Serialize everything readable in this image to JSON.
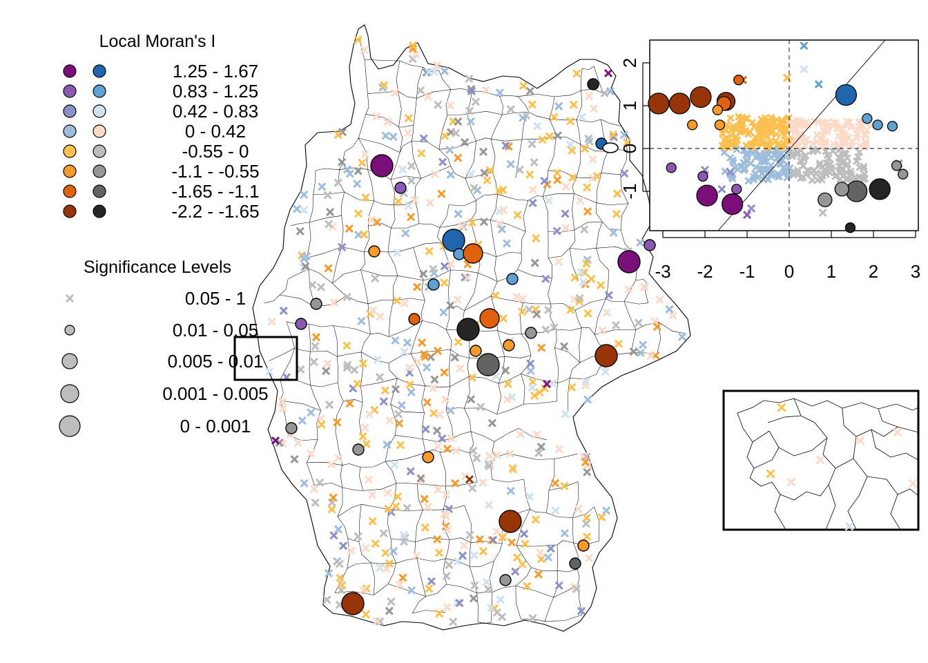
{
  "legend_moran": {
    "title": "Local Moran's I",
    "rows": [
      {
        "label": "1.25 - 1.67",
        "left": "#7a0f7a",
        "right": "#2166ac"
      },
      {
        "label": "0.83 - 1.25",
        "left": "#8a59b0",
        "right": "#5fa2d2"
      },
      {
        "label": "0.42 - 0.83",
        "left": "#8c8fc8",
        "right": "#cfe1f1"
      },
      {
        "label": "0 - 0.42",
        "left": "#9ebcdb",
        "right": "#fddac8"
      },
      {
        "label": "-0.55 - 0",
        "left": "#fdbf4e",
        "right": "#bdbdbd"
      },
      {
        "label": "-1.1 - -0.55",
        "left": "#f59a2b",
        "right": "#969696"
      },
      {
        "label": "-1.65 - -1.1",
        "left": "#e0620f",
        "right": "#636363"
      },
      {
        "label": "-2.2 - -1.65",
        "left": "#983508",
        "right": "#252525"
      }
    ]
  },
  "legend_significance": {
    "title": "Significance Levels",
    "items": [
      {
        "label": "0.05 - 1",
        "size": 0
      },
      {
        "label": "0.01 - 0.05",
        "size": 1
      },
      {
        "label": "0.005 - 0.01",
        "size": 2
      },
      {
        "label": "0.001 - 0.005",
        "size": 3
      },
      {
        "label": "0 - 0.001",
        "size": 4
      }
    ]
  },
  "scatter_inset": {
    "x_ticks": [
      "-3",
      "-2",
      "-1",
      "0",
      "1",
      "2",
      "3"
    ],
    "y_ticks": [
      "-1",
      "0",
      "1",
      "2"
    ],
    "points": [
      {
        "x": -3.1,
        "y": 1.05,
        "size": 4,
        "c": "#983508"
      },
      {
        "x": -2.6,
        "y": 1.05,
        "size": 4,
        "c": "#983508"
      },
      {
        "x": -2.1,
        "y": 1.2,
        "size": 4,
        "c": "#983508"
      },
      {
        "x": -1.5,
        "y": 1.1,
        "size": 3,
        "c": "#983508"
      },
      {
        "x": -1.55,
        "y": 1.05,
        "size": 2,
        "c": "#e0620f"
      },
      {
        "x": -1.2,
        "y": 1.6,
        "size": 1,
        "c": "#e0620f"
      },
      {
        "x": -1.7,
        "y": 0.9,
        "size": 1,
        "c": "#f59a2b"
      },
      {
        "x": -2.3,
        "y": 0.55,
        "size": 1,
        "c": "#f59a2b"
      },
      {
        "x": -1.65,
        "y": 0.55,
        "size": 1,
        "c": "#f59a2b"
      },
      {
        "x": 1.35,
        "y": 1.25,
        "size": 4,
        "c": "#2166ac"
      },
      {
        "x": 1.85,
        "y": 0.7,
        "size": 1,
        "c": "#5fa2d2"
      },
      {
        "x": 2.1,
        "y": 0.55,
        "size": 1,
        "c": "#5fa2d2"
      },
      {
        "x": 2.45,
        "y": 0.52,
        "size": 1,
        "c": "#5fa2d2"
      },
      {
        "x": -2.8,
        "y": -0.45,
        "size": 1,
        "c": "#8a59b0"
      },
      {
        "x": -2.05,
        "y": -0.65,
        "size": 1,
        "c": "#8a59b0"
      },
      {
        "x": -1.25,
        "y": -0.95,
        "size": 1,
        "c": "#8a59b0"
      },
      {
        "x": -1.95,
        "y": -1.1,
        "size": 4,
        "c": "#7a0f7a"
      },
      {
        "x": -1.35,
        "y": -1.3,
        "size": 4,
        "c": "#7a0f7a"
      },
      {
        "x": 1.6,
        "y": -1.0,
        "size": 4,
        "c": "#636363"
      },
      {
        "x": 2.15,
        "y": -0.95,
        "size": 4,
        "c": "#252525"
      },
      {
        "x": 1.25,
        "y": -0.95,
        "size": 2,
        "c": "#969696"
      },
      {
        "x": 0.85,
        "y": -1.2,
        "size": 2,
        "c": "#969696"
      },
      {
        "x": 2.55,
        "y": -0.4,
        "size": 1,
        "c": "#969696"
      },
      {
        "x": 2.7,
        "y": -0.6,
        "size": 1,
        "c": "#969696"
      },
      {
        "x": 1.45,
        "y": -1.85,
        "size": 1,
        "c": "#252525"
      }
    ]
  },
  "map_symbols": {
    "circles": [
      {
        "x": 553,
        "y": 240,
        "size": 4,
        "c": "#7a0f7a"
      },
      {
        "x": 580,
        "y": 272,
        "size": 1,
        "c": "#8a59b0"
      },
      {
        "x": 911,
        "y": 379,
        "size": 4,
        "c": "#7a0f7a"
      },
      {
        "x": 941,
        "y": 355,
        "size": 1,
        "c": "#8a59b0"
      },
      {
        "x": 436,
        "y": 469,
        "size": 1,
        "c": "#8a59b0"
      },
      {
        "x": 657,
        "y": 348,
        "size": 4,
        "c": "#2166ac"
      },
      {
        "x": 665,
        "y": 368,
        "size": 1,
        "c": "#5fa2d2"
      },
      {
        "x": 871,
        "y": 208,
        "size": 1,
        "c": "#2166ac"
      },
      {
        "x": 628,
        "y": 412,
        "size": 1,
        "c": "#5fa2d2"
      },
      {
        "x": 742,
        "y": 404,
        "size": 1,
        "c": "#5fa2d2"
      },
      {
        "x": 685,
        "y": 367,
        "size": 3,
        "c": "#e0620f"
      },
      {
        "x": 709,
        "y": 461,
        "size": 3,
        "c": "#e0620f"
      },
      {
        "x": 600,
        "y": 462,
        "size": 1,
        "c": "#e0620f"
      },
      {
        "x": 542,
        "y": 364,
        "size": 1,
        "c": "#f59a2b"
      },
      {
        "x": 737,
        "y": 500,
        "size": 1,
        "c": "#f59a2b"
      },
      {
        "x": 689,
        "y": 508,
        "size": 1,
        "c": "#f59a2b"
      },
      {
        "x": 620,
        "y": 662,
        "size": 1,
        "c": "#f59a2b"
      },
      {
        "x": 845,
        "y": 790,
        "size": 1,
        "c": "#f59a2b"
      },
      {
        "x": 678,
        "y": 477,
        "size": 4,
        "c": "#252525"
      },
      {
        "x": 859,
        "y": 122,
        "size": 1,
        "c": "#252525"
      },
      {
        "x": 707,
        "y": 528,
        "size": 4,
        "c": "#636363"
      },
      {
        "x": 833,
        "y": 816,
        "size": 1,
        "c": "#636363"
      },
      {
        "x": 458,
        "y": 440,
        "size": 1,
        "c": "#969696"
      },
      {
        "x": 769,
        "y": 482,
        "size": 1,
        "c": "#969696"
      },
      {
        "x": 422,
        "y": 620,
        "size": 1,
        "c": "#969696"
      },
      {
        "x": 519,
        "y": 651,
        "size": 1,
        "c": "#969696"
      },
      {
        "x": 732,
        "y": 840,
        "size": 1,
        "c": "#969696"
      },
      {
        "x": 878,
        "y": 515,
        "size": 4,
        "c": "#983508"
      },
      {
        "x": 739,
        "y": 755,
        "size": 4,
        "c": "#983508"
      },
      {
        "x": 511,
        "y": 874,
        "size": 4,
        "c": "#983508"
      }
    ]
  }
}
